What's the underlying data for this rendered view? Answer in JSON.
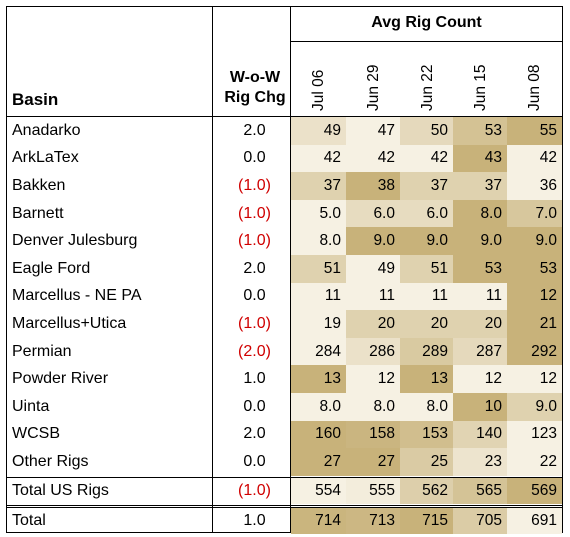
{
  "header": {
    "basin": "Basin",
    "wow_line1": "W-o-W",
    "wow_line2": "Rig Chg",
    "avg": "Avg Rig Count"
  },
  "dates": [
    "Jul 06",
    "Jun 29",
    "Jun 22",
    "Jun 15",
    "Jun 08"
  ],
  "rows": [
    {
      "name": "Anadarko",
      "wow": "2.0",
      "neg": false,
      "values": [
        "49",
        "47",
        "50",
        "53",
        "55"
      ]
    },
    {
      "name": "ArkLaTex",
      "wow": "0.0",
      "neg": false,
      "values": [
        "42",
        "42",
        "42",
        "43",
        "42"
      ]
    },
    {
      "name": "Bakken",
      "wow": "(1.0)",
      "neg": true,
      "values": [
        "37",
        "38",
        "37",
        "37",
        "36"
      ]
    },
    {
      "name": "Barnett",
      "wow": "(1.0)",
      "neg": true,
      "values": [
        "5.0",
        "6.0",
        "6.0",
        "8.0",
        "7.0"
      ]
    },
    {
      "name": "Denver Julesburg",
      "wow": "(1.0)",
      "neg": true,
      "values": [
        "8.0",
        "9.0",
        "9.0",
        "9.0",
        "9.0"
      ]
    },
    {
      "name": "Eagle Ford",
      "wow": "2.0",
      "neg": false,
      "values": [
        "51",
        "49",
        "51",
        "53",
        "53"
      ]
    },
    {
      "name": "Marcellus - NE PA",
      "wow": "0.0",
      "neg": false,
      "values": [
        "11",
        "11",
        "11",
        "11",
        "12"
      ]
    },
    {
      "name": "Marcellus+Utica",
      "wow": "(1.0)",
      "neg": true,
      "values": [
        "19",
        "20",
        "20",
        "20",
        "21"
      ]
    },
    {
      "name": "Permian",
      "wow": "(2.0)",
      "neg": true,
      "values": [
        "284",
        "286",
        "289",
        "287",
        "292"
      ]
    },
    {
      "name": "Powder River",
      "wow": "1.0",
      "neg": false,
      "values": [
        "13",
        "12",
        "13",
        "12",
        "12"
      ]
    },
    {
      "name": "Uinta",
      "wow": "0.0",
      "neg": false,
      "values": [
        "8.0",
        "8.0",
        "8.0",
        "10",
        "9.0"
      ]
    },
    {
      "name": "WCSB",
      "wow": "2.0",
      "neg": false,
      "values": [
        "160",
        "158",
        "153",
        "140",
        "123"
      ]
    },
    {
      "name": "Other Rigs",
      "wow": "0.0",
      "neg": false,
      "values": [
        "27",
        "27",
        "25",
        "23",
        "22"
      ]
    }
  ],
  "total_us": {
    "name": "Total US Rigs",
    "wow": "(1.0)",
    "neg": true,
    "values": [
      "554",
      "555",
      "562",
      "565",
      "569"
    ]
  },
  "total": {
    "name": "Total",
    "wow": "1.0",
    "neg": false,
    "values": [
      "714",
      "713",
      "715",
      "705",
      "691"
    ]
  },
  "colors": {
    "negative": "#d00000",
    "heat_light": "#f6f1e3",
    "heat_dark": "#c8b27a",
    "border": "#000000"
  }
}
